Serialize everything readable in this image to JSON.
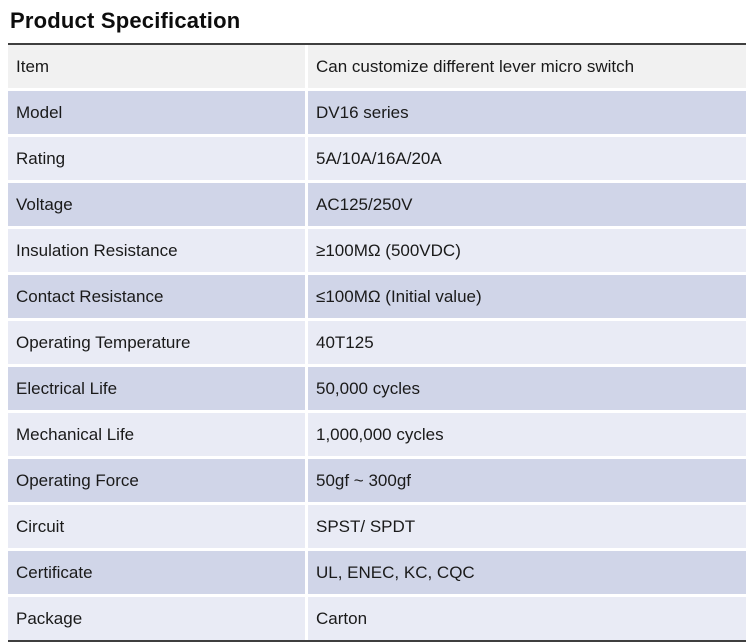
{
  "page": {
    "title": "Product Specification"
  },
  "table": {
    "rows": [
      {
        "label": "Item",
        "value": "Can customize different lever micro switch"
      },
      {
        "label": "Model",
        "value": "DV16 series"
      },
      {
        "label": "Rating",
        "value": "5A/10A/16A/20A"
      },
      {
        "label": "Voltage",
        "value": "AC125/250V"
      },
      {
        "label": "Insulation Resistance",
        "value": "≥100MΩ (500VDC)"
      },
      {
        "label": "Contact Resistance",
        "value": "≤100MΩ (Initial value)"
      },
      {
        "label": "Operating Temperature",
        "value": "40T125"
      },
      {
        "label": "Electrical Life",
        "value": "50,000 cycles"
      },
      {
        "label": "Mechanical Life",
        "value": "1,000,000 cycles"
      },
      {
        "label": "Operating Force",
        "value": "50gf ~ 300gf"
      },
      {
        "label": "Circuit",
        "value": "SPST/ SPDT"
      },
      {
        "label": "Certificate",
        "value": "UL, ENEC, KC, CQC"
      },
      {
        "label": "Package",
        "value": "Carton"
      }
    ]
  },
  "colors": {
    "header_row_bg": "#f1f1f1",
    "even_row_bg": "#d0d5e8",
    "odd_row_bg": "#e9ebf5",
    "border": "#3f3f3f",
    "separator": "#ffffff",
    "text": "#1a1a1a"
  }
}
